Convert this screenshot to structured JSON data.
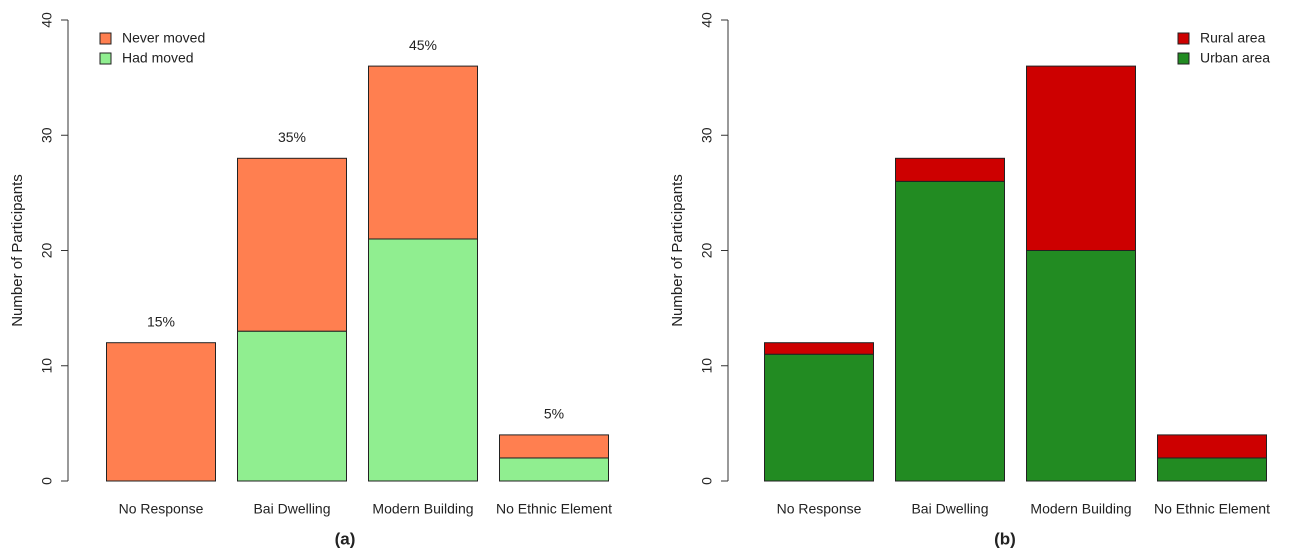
{
  "chart_data": [
    {
      "type": "bar",
      "stacked": true,
      "caption": "(a)",
      "ylabel": "Number of Participants",
      "categories": [
        "No Response",
        "Bai Dwelling",
        "Modern Building",
        "No Ethnic Element"
      ],
      "series": [
        {
          "name": "Had moved",
          "color": "#90ee90",
          "values": [
            0,
            13,
            21,
            2
          ]
        },
        {
          "name": "Never moved",
          "color": "#ff7f50",
          "values": [
            12,
            15,
            15,
            2
          ]
        }
      ],
      "annotations": [
        "15%",
        "35%",
        "45%",
        "5%"
      ],
      "ylim": [
        0,
        40
      ],
      "yticks": [
        0,
        10,
        20,
        30,
        40
      ],
      "legend": "topleft"
    },
    {
      "type": "bar",
      "stacked": true,
      "caption": "(b)",
      "ylabel": "Number of Participants",
      "categories": [
        "No Response",
        "Bai Dwelling",
        "Modern Building",
        "No Ethnic Element"
      ],
      "series": [
        {
          "name": "Urban area",
          "color": "#228b22",
          "values": [
            11,
            26,
            20,
            2
          ]
        },
        {
          "name": "Rural area",
          "color": "#cd0000",
          "values": [
            1,
            2,
            16,
            2
          ]
        }
      ],
      "ylim": [
        0,
        40
      ],
      "yticks": [
        0,
        10,
        20,
        30,
        40
      ],
      "legend": "topright"
    }
  ]
}
